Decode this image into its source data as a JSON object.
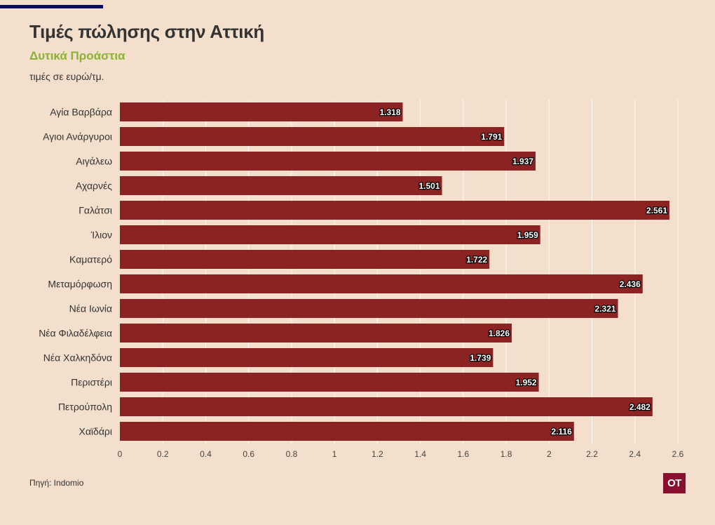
{
  "header": {
    "title": "Τιμές πώλησης στην Αττική",
    "subtitle": "Δυτικά Προάστια",
    "unit_note": "τιμές σε ευρώ/τμ."
  },
  "footer": {
    "source": "Πηγή: Indomio",
    "logo_text": "OT"
  },
  "colors": {
    "background": "#f4dfcc",
    "bar": "#8b2323",
    "subtitle": "#8ab333",
    "logo": "#8a0f2f",
    "rule": "#0a0a5a"
  },
  "chart_data": {
    "type": "bar",
    "orientation": "horizontal",
    "categories": [
      "Αγία Βαρβάρα",
      "Αγιοι Ανάργυροι",
      "Αιγάλεω",
      "Αχαρνές",
      "Γαλάτσι",
      "Ίλιον",
      "Καματερό",
      "Μεταμόρφωση",
      "Νέα Ιωνία",
      "Νέα Φιλαδέλφεια",
      "Νέα Χαλκηδόνα",
      "Περιστέρι",
      "Πετρούπολη",
      "Χαϊδάρι"
    ],
    "values": [
      1.318,
      1.791,
      1.937,
      1.501,
      2.561,
      1.959,
      1.722,
      2.436,
      2.321,
      1.826,
      1.739,
      1.952,
      2.482,
      2.116
    ],
    "data_labels": [
      "1.318",
      "1.791",
      "1.937",
      "1.501",
      "2.561",
      "1.959",
      "1.722",
      "2.436",
      "2.321",
      "1.826",
      "1.739",
      "1.952",
      "2.482",
      "2.116"
    ],
    "x_ticks": [
      0,
      0.2,
      0.4,
      0.6,
      0.8,
      1,
      1.2,
      1.4,
      1.6,
      1.8,
      2,
      2.2,
      2.4,
      2.6
    ],
    "x_tick_labels": [
      "0",
      "0.2",
      "0.4",
      "0.6",
      "0.8",
      "1",
      "1.2",
      "1.4",
      "1.6",
      "1.8",
      "2",
      "2.2",
      "2.4",
      "2.6"
    ],
    "xlim": [
      0,
      2.6
    ],
    "grid": true,
    "legend": "none"
  }
}
